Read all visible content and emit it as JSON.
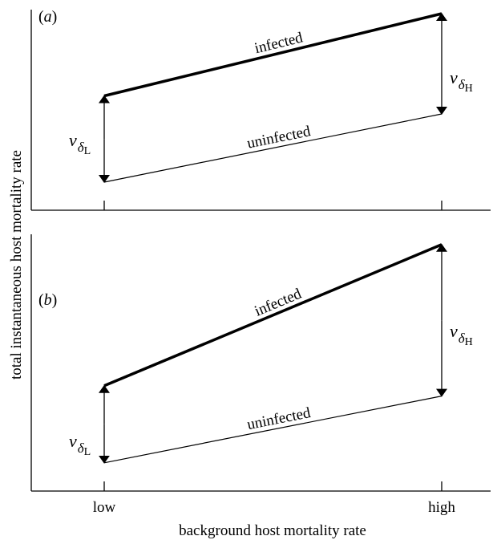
{
  "figure": {
    "xlabel": "background host mortality rate",
    "ylabel": "total instantaneous host mortality rate",
    "x_ticks": [
      "low",
      "high"
    ]
  },
  "panels": [
    {
      "label": "a",
      "infected_label": "infected",
      "uninfected_label": "uninfected",
      "effect_low": {
        "symbol": "v",
        "sub": "δ",
        "subsub": "L"
      },
      "effect_high": {
        "symbol": "v",
        "sub": "δ",
        "subsub": "H"
      }
    },
    {
      "label": "b",
      "infected_label": "infected",
      "uninfected_label": "uninfected",
      "effect_low": {
        "symbol": "v",
        "sub": "δ",
        "subsub": "L"
      },
      "effect_high": {
        "symbol": "v",
        "sub": "δ",
        "subsub": "H"
      }
    }
  ],
  "chart_data": [
    {
      "type": "line",
      "title": "",
      "xlabel": "background host mortality rate",
      "ylabel": "total instantaneous host mortality rate",
      "categories": [
        "low",
        "high"
      ],
      "ylim": [
        0,
        1
      ],
      "series": [
        {
          "name": "infected",
          "values": [
            0.57,
            0.98
          ]
        },
        {
          "name": "uninfected",
          "values": [
            0.14,
            0.48
          ]
        }
      ],
      "annotations": [
        "vδL",
        "vδH"
      ]
    },
    {
      "type": "line",
      "title": "",
      "xlabel": "background host mortality rate",
      "ylabel": "total instantaneous host mortality rate",
      "categories": [
        "low",
        "high"
      ],
      "ylim": [
        0,
        1
      ],
      "series": [
        {
          "name": "infected",
          "values": [
            0.41,
            0.96
          ]
        },
        {
          "name": "uninfected",
          "values": [
            0.11,
            0.37
          ]
        }
      ],
      "annotations": [
        "vδL",
        "vδH"
      ]
    }
  ]
}
